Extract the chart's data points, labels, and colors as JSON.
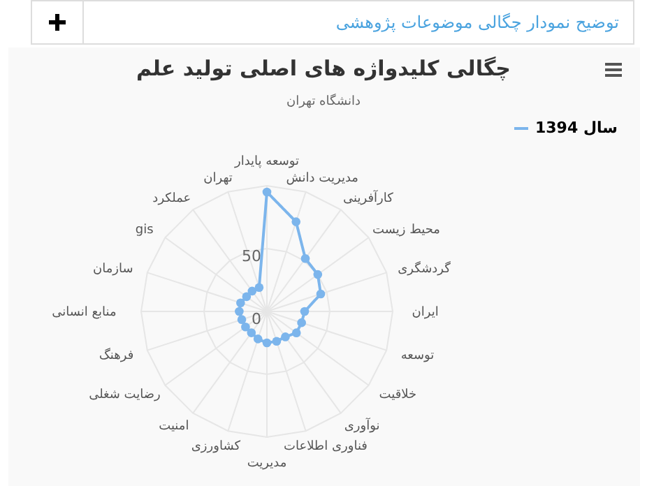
{
  "chart_data": {
    "type": "radar",
    "title": "چگالی کلیدواژه های اصلی تولید علم",
    "subtitle": "دانشگاه تهران",
    "annotations": [
      "توضیح نمودار چگالی موضوعات پژوهشی"
    ],
    "categories": [
      "توسعه پایدار",
      "مدیریت دانش",
      "کارآفرینی",
      "محیط زیست",
      "گردشگری",
      "ایران",
      "توسعه",
      "خلاقیت",
      "نوآوری",
      "فناوری اطلاعات",
      "مدیریت",
      "کشاورزی",
      "امنیت",
      "رضایت شغلی",
      "فرهنگ",
      "منابع انسانی",
      "سازمان",
      "gis",
      "عملکرد",
      "تهران"
    ],
    "series": [
      {
        "name": "سال 1394",
        "color": "#7cb5ec",
        "values": [
          95,
          75,
          52,
          50,
          45,
          30,
          29,
          29,
          25,
          25,
          25,
          23,
          21,
          21,
          21,
          22,
          22,
          20,
          20,
          20
        ]
      }
    ],
    "ylim": [
      0,
      100
    ],
    "yticks": [
      0,
      50
    ],
    "grid": true,
    "legend": "top right",
    "marker": "circle"
  }
}
